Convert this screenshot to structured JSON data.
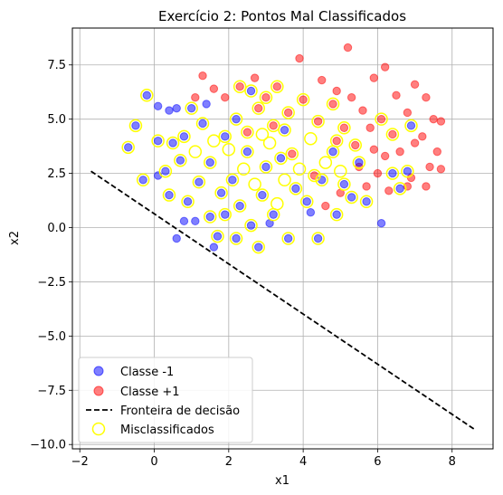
{
  "chart_data": {
    "type": "scatter",
    "title": "Exercício 2: Pontos Mal Classificados",
    "xlabel": "x1",
    "ylabel": "x2",
    "xlim": [
      -2.2,
      9.1
    ],
    "ylim": [
      -10.2,
      9.2
    ],
    "xticks": [
      -2,
      0,
      2,
      4,
      6,
      8
    ],
    "yticks": [
      -10.0,
      -7.5,
      -5.0,
      -2.5,
      0.0,
      2.5,
      5.0,
      7.5
    ],
    "xtick_labels": [
      "−2",
      "0",
      "2",
      "4",
      "6",
      "8"
    ],
    "ytick_labels": [
      "−10.0",
      "−7.5",
      "−5.0",
      "−2.5",
      "0.0",
      "2.5",
      "5.0",
      "7.5"
    ],
    "grid": true,
    "legend_position": "lower-left",
    "colors": {
      "class_neg": "#0000ff",
      "class_pos": "#ff0000",
      "boundary": "#000000",
      "misclassified": "#ffff00"
    },
    "series": [
      {
        "name": "Classe -1",
        "kind": "points",
        "points": [
          [
            -0.2,
            6.1
          ],
          [
            0.1,
            5.6
          ],
          [
            0.4,
            5.4
          ],
          [
            0.6,
            5.5
          ],
          [
            -0.7,
            3.7
          ],
          [
            -0.5,
            4.7
          ],
          [
            0.1,
            4.0
          ],
          [
            0.5,
            3.9
          ],
          [
            0.3,
            2.6
          ],
          [
            0.1,
            2.4
          ],
          [
            -0.3,
            2.2
          ],
          [
            0.4,
            1.5
          ],
          [
            0.9,
            1.2
          ],
          [
            1.1,
            0.3
          ],
          [
            0.8,
            0.3
          ],
          [
            0.6,
            -0.5
          ],
          [
            1.5,
            0.5
          ],
          [
            1.7,
            -0.4
          ],
          [
            1.6,
            -0.9
          ],
          [
            2.2,
            -0.5
          ],
          [
            2.8,
            -0.9
          ],
          [
            3.1,
            0.2
          ],
          [
            3.6,
            -0.5
          ],
          [
            4.2,
            0.7
          ],
          [
            4.4,
            -0.5
          ],
          [
            4.9,
            0.6
          ],
          [
            5.3,
            1.4
          ],
          [
            5.7,
            1.2
          ],
          [
            6.1,
            0.2
          ],
          [
            6.6,
            1.8
          ],
          [
            6.8,
            2.6
          ],
          [
            6.4,
            2.5
          ],
          [
            6.9,
            4.7
          ],
          [
            1.0,
            5.5
          ],
          [
            1.4,
            5.7
          ],
          [
            2.6,
            6.3
          ],
          [
            1.9,
            4.2
          ],
          [
            2.5,
            3.5
          ],
          [
            3.0,
            2.8
          ],
          [
            3.4,
            3.2
          ],
          [
            2.1,
            2.2
          ],
          [
            1.5,
            3.0
          ],
          [
            0.8,
            4.2
          ],
          [
            1.2,
            2.1
          ],
          [
            2.9,
            1.5
          ],
          [
            3.8,
            1.8
          ],
          [
            4.5,
            2.2
          ],
          [
            4.8,
            3.5
          ],
          [
            2.3,
            1.0
          ],
          [
            1.8,
            1.6
          ],
          [
            3.5,
            4.5
          ],
          [
            2.2,
            5.0
          ],
          [
            1.3,
            4.8
          ],
          [
            0.7,
            3.1
          ],
          [
            4.1,
            1.2
          ],
          [
            3.2,
            0.6
          ],
          [
            2.6,
            0.1
          ],
          [
            1.9,
            0.6
          ],
          [
            5.1,
            2.0
          ],
          [
            5.5,
            3.0
          ]
        ]
      },
      {
        "name": "Classe +1",
        "kind": "points",
        "points": [
          [
            5.2,
            8.3
          ],
          [
            3.9,
            7.8
          ],
          [
            6.2,
            7.4
          ],
          [
            1.3,
            7.0
          ],
          [
            2.7,
            6.9
          ],
          [
            4.5,
            6.8
          ],
          [
            5.9,
            6.9
          ],
          [
            7.0,
            6.6
          ],
          [
            1.1,
            6.0
          ],
          [
            1.6,
            6.4
          ],
          [
            3.3,
            6.5
          ],
          [
            4.9,
            6.3
          ],
          [
            6.5,
            6.1
          ],
          [
            7.3,
            6.0
          ],
          [
            6.8,
            5.3
          ],
          [
            7.5,
            5.0
          ],
          [
            7.7,
            4.9
          ],
          [
            7.2,
            4.2
          ],
          [
            7.6,
            3.5
          ],
          [
            7.4,
            2.8
          ],
          [
            7.7,
            2.7
          ],
          [
            7.3,
            1.9
          ],
          [
            6.8,
            1.9
          ],
          [
            6.3,
            1.7
          ],
          [
            6.2,
            3.3
          ],
          [
            5.8,
            4.6
          ],
          [
            5.6,
            5.4
          ],
          [
            5.3,
            6.0
          ],
          [
            4.8,
            5.7
          ],
          [
            4.0,
            5.9
          ],
          [
            3.0,
            6.0
          ],
          [
            2.3,
            6.5
          ],
          [
            6.0,
            2.5
          ],
          [
            5.5,
            2.8
          ],
          [
            5.9,
            3.6
          ],
          [
            6.6,
            3.5
          ],
          [
            7.0,
            3.9
          ],
          [
            6.4,
            4.3
          ],
          [
            6.1,
            5.0
          ],
          [
            5.1,
            4.6
          ],
          [
            4.4,
            4.9
          ],
          [
            3.6,
            5.3
          ],
          [
            2.8,
            5.5
          ],
          [
            1.9,
            6.0
          ],
          [
            4.6,
            1.0
          ],
          [
            5.0,
            1.6
          ],
          [
            4.3,
            2.4
          ],
          [
            3.7,
            3.4
          ],
          [
            5.4,
            3.8
          ],
          [
            6.9,
            2.3
          ],
          [
            5.7,
            1.9
          ],
          [
            4.9,
            4.0
          ],
          [
            3.2,
            4.7
          ],
          [
            2.5,
            4.4
          ]
        ]
      },
      {
        "name": "Fronteira de decisão",
        "kind": "line",
        "points": [
          [
            -1.7,
            2.6
          ],
          [
            8.6,
            -9.3
          ]
        ]
      },
      {
        "name": "Misclassificados",
        "kind": "rings",
        "points": [
          [
            -0.2,
            6.1
          ],
          [
            -0.7,
            3.7
          ],
          [
            -0.5,
            4.7
          ],
          [
            0.1,
            4.0
          ],
          [
            0.5,
            3.9
          ],
          [
            0.3,
            2.6
          ],
          [
            -0.3,
            2.2
          ],
          [
            0.4,
            1.5
          ],
          [
            0.9,
            1.2
          ],
          [
            1.5,
            0.5
          ],
          [
            1.7,
            -0.4
          ],
          [
            2.2,
            -0.5
          ],
          [
            2.8,
            -0.9
          ],
          [
            3.6,
            -0.5
          ],
          [
            4.4,
            -0.5
          ],
          [
            4.9,
            0.6
          ],
          [
            5.3,
            1.4
          ],
          [
            5.7,
            1.2
          ],
          [
            6.6,
            1.8
          ],
          [
            6.4,
            2.5
          ],
          [
            1.0,
            5.5
          ],
          [
            2.6,
            6.3
          ],
          [
            3.3,
            6.5
          ],
          [
            3.0,
            6.0
          ],
          [
            2.3,
            6.5
          ],
          [
            4.0,
            5.9
          ],
          [
            4.8,
            5.7
          ],
          [
            5.1,
            4.6
          ],
          [
            6.1,
            5.0
          ],
          [
            6.4,
            4.3
          ],
          [
            6.9,
            4.7
          ],
          [
            6.8,
            2.6
          ],
          [
            1.9,
            4.2
          ],
          [
            2.5,
            3.5
          ],
          [
            3.0,
            2.8
          ],
          [
            3.4,
            3.2
          ],
          [
            2.1,
            2.2
          ],
          [
            1.5,
            3.0
          ],
          [
            0.8,
            4.2
          ],
          [
            1.2,
            2.1
          ],
          [
            2.9,
            1.5
          ],
          [
            3.8,
            1.8
          ],
          [
            4.5,
            2.2
          ],
          [
            4.8,
            3.5
          ],
          [
            2.3,
            1.0
          ],
          [
            1.8,
            1.6
          ],
          [
            3.5,
            4.5
          ],
          [
            2.2,
            5.0
          ],
          [
            1.3,
            4.8
          ],
          [
            0.7,
            3.1
          ],
          [
            4.1,
            1.2
          ],
          [
            3.2,
            0.6
          ],
          [
            2.6,
            0.1
          ],
          [
            1.9,
            0.6
          ],
          [
            5.1,
            2.0
          ],
          [
            5.5,
            3.0
          ],
          [
            3.7,
            3.4
          ],
          [
            2.8,
            5.5
          ],
          [
            3.6,
            5.3
          ],
          [
            4.4,
            4.9
          ],
          [
            3.2,
            4.7
          ],
          [
            2.5,
            4.4
          ],
          [
            4.3,
            2.4
          ],
          [
            4.9,
            4.0
          ],
          [
            5.4,
            3.8
          ],
          [
            2.7,
            2.0
          ],
          [
            3.9,
            2.7
          ],
          [
            2.0,
            3.6
          ],
          [
            4.6,
            3.0
          ],
          [
            3.1,
            3.9
          ],
          [
            2.4,
            2.7
          ],
          [
            1.6,
            4.0
          ],
          [
            4.2,
            4.1
          ],
          [
            3.5,
            2.2
          ],
          [
            2.9,
            4.3
          ],
          [
            1.1,
            3.5
          ],
          [
            5.0,
            2.6
          ],
          [
            3.3,
            1.1
          ]
        ]
      }
    ]
  }
}
